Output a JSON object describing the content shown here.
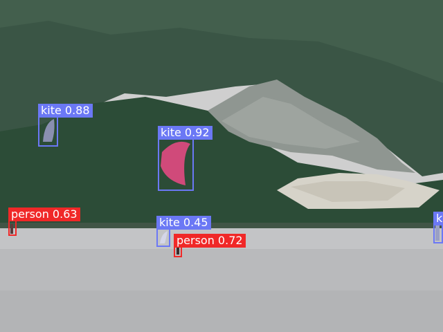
{
  "colors": {
    "kite": "#6b78f5",
    "person": "#f02828"
  },
  "detections": [
    {
      "class": "kite",
      "label": "kite 0.88"
    },
    {
      "class": "kite",
      "label": "kite 0.92"
    },
    {
      "class": "person",
      "label": "person 0.63"
    },
    {
      "class": "kite",
      "label": "kite 0.45"
    },
    {
      "class": "person",
      "label": "person 0.72"
    },
    {
      "class": "kite",
      "label": "k"
    }
  ]
}
